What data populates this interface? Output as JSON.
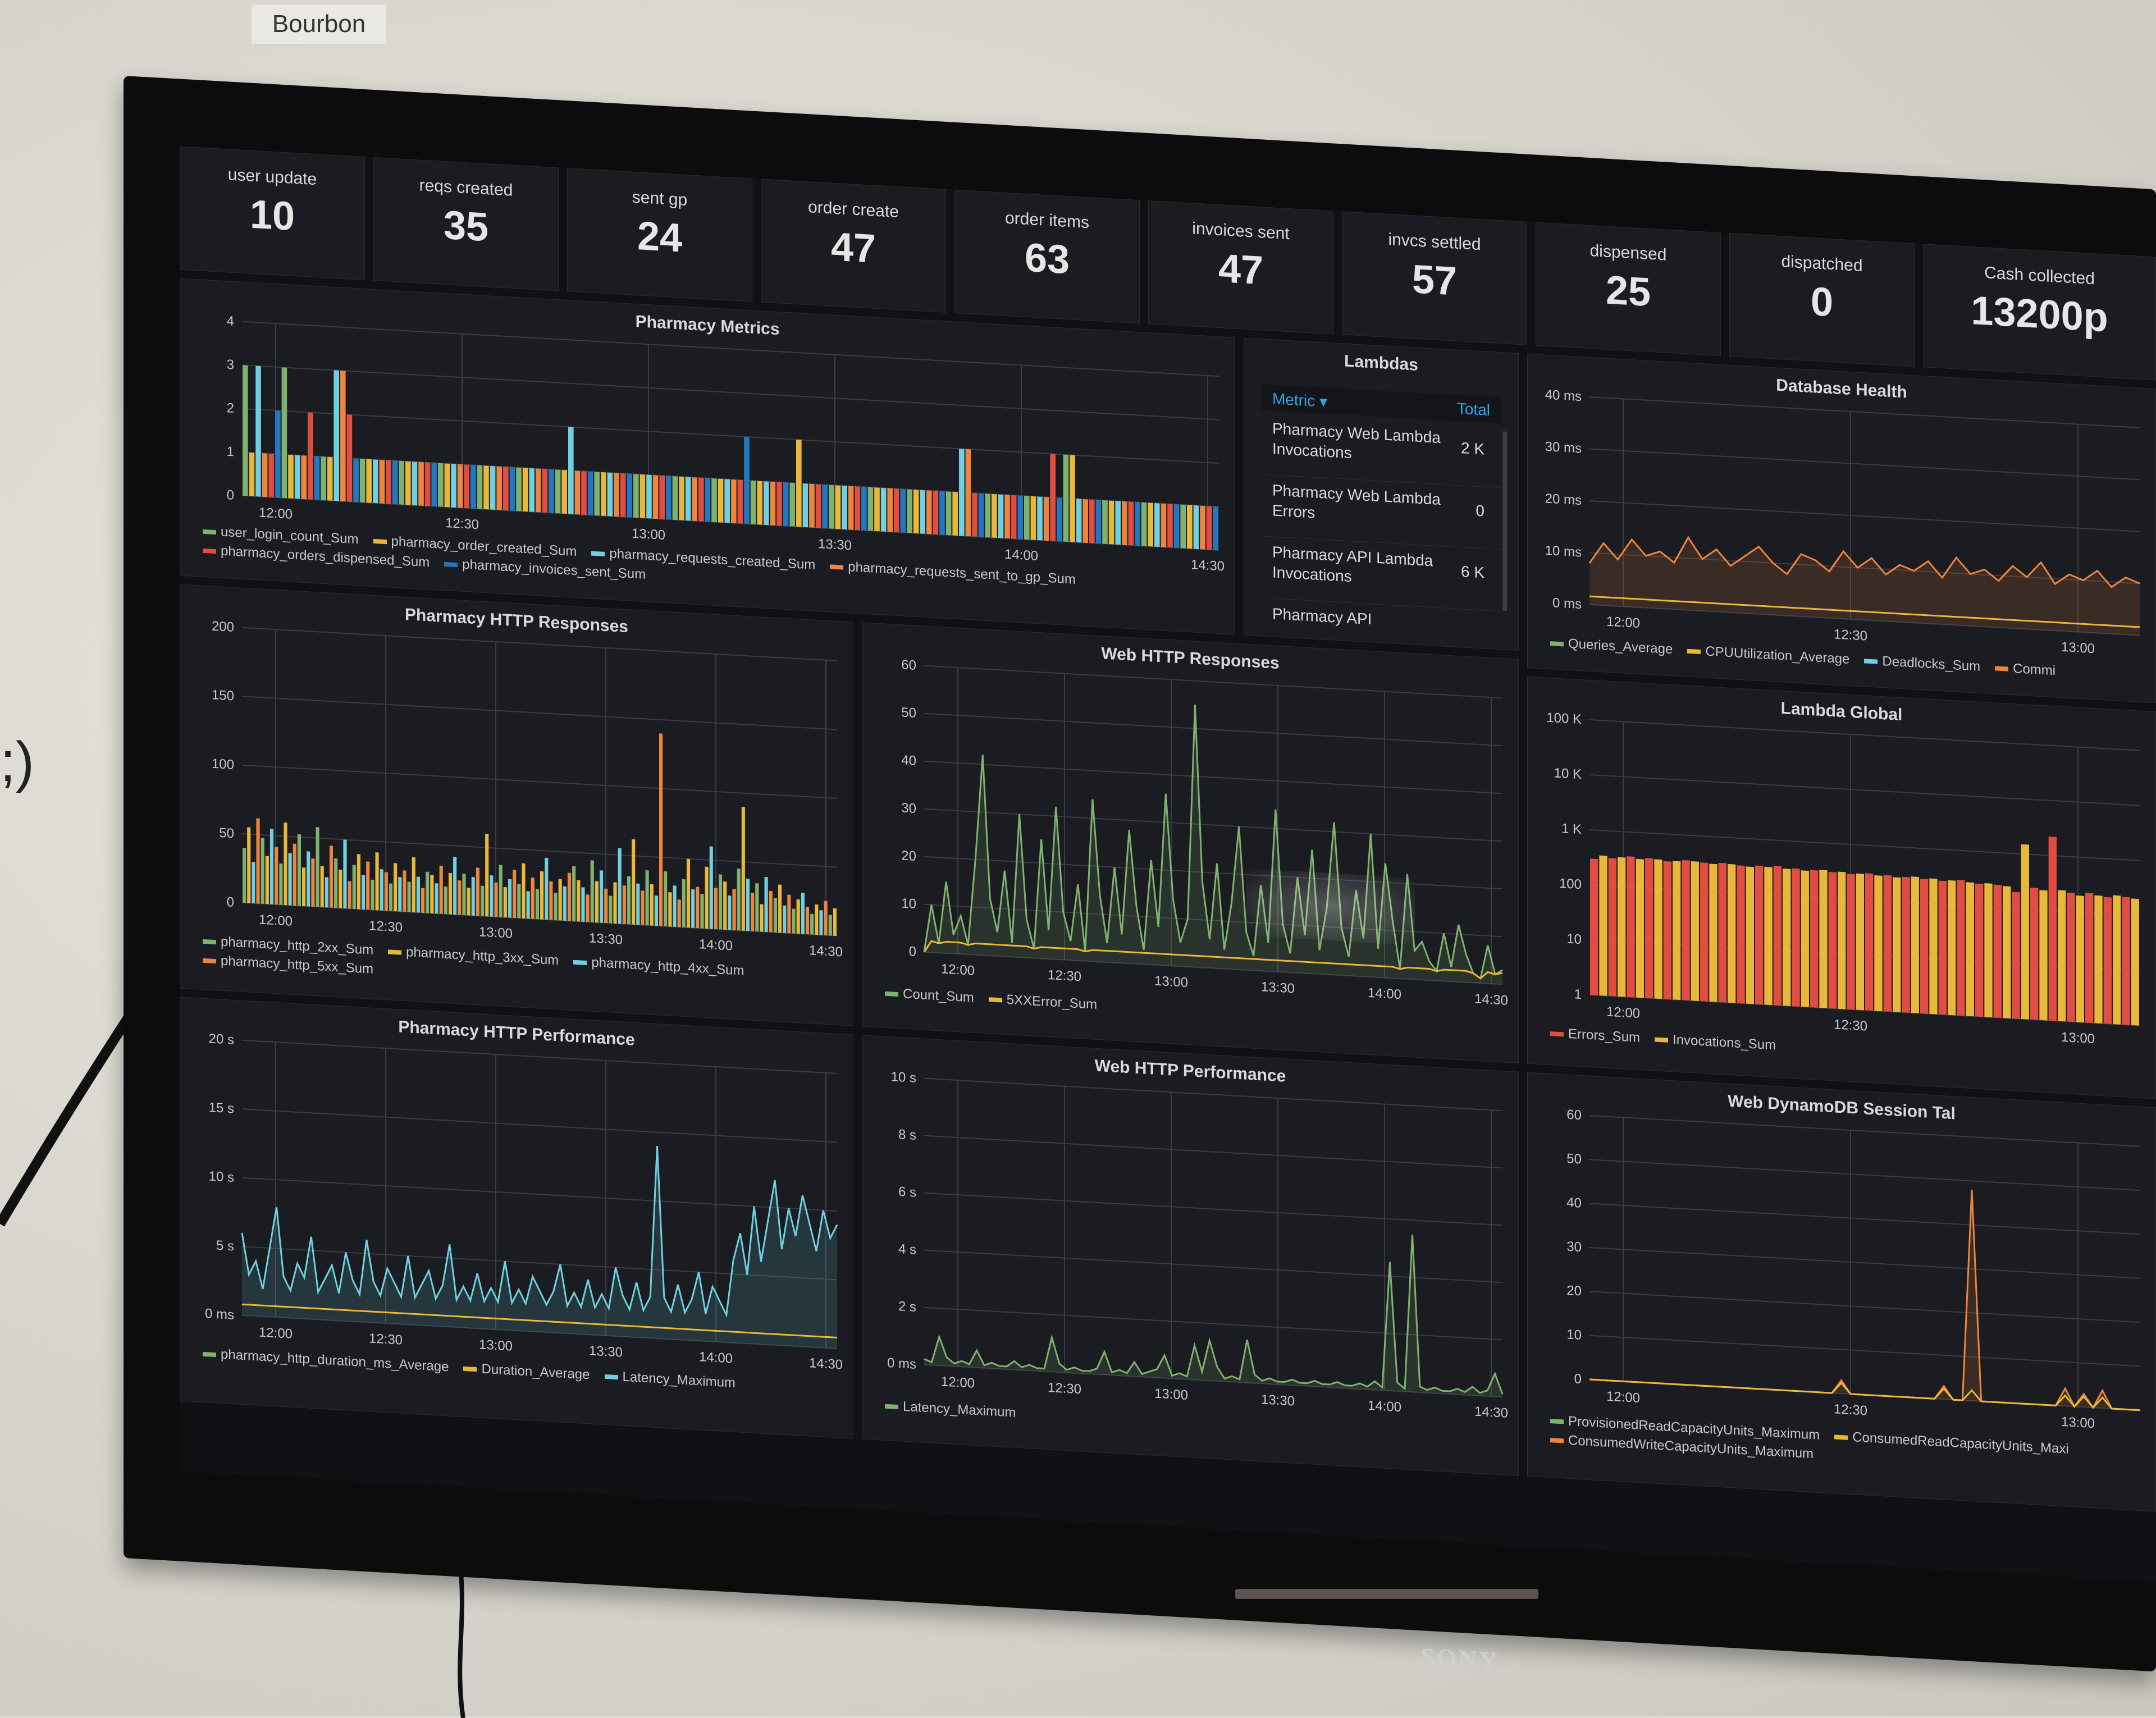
{
  "room_label": "Bourbon",
  "wall_text": ";)",
  "tv_brand": "SONY",
  "stats": [
    {
      "title": "user update",
      "value": "10"
    },
    {
      "title": "reqs created",
      "value": "35"
    },
    {
      "title": "sent gp",
      "value": "24"
    },
    {
      "title": "order create",
      "value": "47"
    },
    {
      "title": "order items",
      "value": "63"
    },
    {
      "title": "invoices sent",
      "value": "47"
    },
    {
      "title": "invcs settled",
      "value": "57"
    },
    {
      "title": "dispensed",
      "value": "25"
    },
    {
      "title": "dispatched",
      "value": "0"
    },
    {
      "title": "Cash collected",
      "value": "13200p"
    }
  ],
  "lambdas": {
    "title": "Lambdas",
    "col_metric": "Metric ▾",
    "col_total": "Total",
    "rows": [
      {
        "name": "Pharmacy Web Lambda Invocations",
        "total": "2 K"
      },
      {
        "name": "Pharmacy Web Lambda Errors",
        "total": "0"
      },
      {
        "name": "Pharmacy API Lambda Invocations",
        "total": "6 K"
      },
      {
        "name": "Pharmacy API",
        "total": ""
      }
    ]
  },
  "colors": {
    "green": "#7eb26d",
    "yellow": "#eab839",
    "cyan": "#6ed0e0",
    "orange": "#ef843c",
    "red": "#e24d42",
    "blue": "#1f78c1",
    "teal": "#5fd3a8"
  },
  "chart_data": [
    {
      "id": "pharmacy-metrics",
      "type": "bar",
      "title": "Pharmacy Metrics",
      "y_ticks": [
        "0",
        "1",
        "2",
        "3",
        "4"
      ],
      "x_ticks": [
        "12:00",
        "12:30",
        "13:00",
        "13:30",
        "14:00",
        "14:30"
      ],
      "ylim": [
        0,
        4
      ],
      "series": [
        {
          "name": "user_login_count_Sum",
          "color": "#7eb26d"
        },
        {
          "name": "pharmacy_order_created_Sum",
          "color": "#eab839"
        },
        {
          "name": "pharmacy_requests_created_Sum",
          "color": "#6ed0e0"
        },
        {
          "name": "pharmacy_requests_sent_to_gp_Sum",
          "color": "#ef843c"
        },
        {
          "name": "pharmacy_orders_dispensed_Sum",
          "color": "#e24d42"
        },
        {
          "name": "pharmacy_invoices_sent_Sum",
          "color": "#1f78c1"
        }
      ],
      "values": [
        3,
        1,
        3,
        1,
        1,
        2,
        3,
        1,
        1,
        1,
        2,
        1,
        1,
        1,
        3,
        3,
        2,
        1,
        1,
        1,
        1,
        1,
        1,
        1,
        1,
        1,
        1,
        1,
        1,
        1,
        1,
        1,
        1,
        1,
        1,
        1,
        1,
        1,
        1,
        1,
        1,
        1,
        1,
        1,
        1,
        1,
        1,
        1,
        1,
        1,
        2,
        1,
        1,
        1,
        1,
        1,
        1,
        1,
        1,
        1,
        1,
        1,
        1,
        1,
        1,
        1,
        1,
        1,
        1,
        1,
        1,
        1,
        1,
        1,
        1,
        1,
        1,
        2,
        1,
        1,
        1,
        1,
        1,
        1,
        1,
        2,
        1,
        1,
        1,
        1,
        1,
        1,
        1,
        1,
        1,
        1,
        1,
        1,
        1,
        1,
        1,
        1,
        1,
        1,
        1,
        1,
        1,
        1,
        1,
        1,
        2,
        2,
        1,
        1,
        1,
        1,
        1,
        1,
        1,
        1,
        1,
        1,
        1,
        1,
        2,
        1,
        2,
        2,
        1,
        1,
        1,
        1,
        1,
        1,
        1,
        1,
        1,
        1,
        1,
        1,
        1,
        1,
        1,
        1,
        1,
        1,
        1,
        1,
        1,
        1
      ]
    },
    {
      "id": "pharmacy-http-responses",
      "type": "bar",
      "title": "Pharmacy HTTP Responses",
      "y_ticks": [
        "0",
        "50",
        "100",
        "150",
        "200"
      ],
      "x_ticks": [
        "12:00",
        "12:30",
        "13:00",
        "13:30",
        "14:00",
        "14:30"
      ],
      "ylim": [
        0,
        200
      ],
      "series": [
        {
          "name": "pharmacy_http_2xx_Sum",
          "color": "#7eb26d"
        },
        {
          "name": "pharmacy_http_3xx_Sum",
          "color": "#eab839"
        },
        {
          "name": "pharmacy_http_4xx_Sum",
          "color": "#6ed0e0"
        },
        {
          "name": "pharmacy_http_5xx_Sum",
          "color": "#ef843c"
        }
      ],
      "values": [
        40,
        55,
        30,
        62,
        48,
        35,
        55,
        42,
        30,
        60,
        38,
        45,
        52,
        28,
        40,
        35,
        58,
        30,
        22,
        45,
        36,
        28,
        50,
        20,
        32,
        40,
        25,
        35,
        22,
        42,
        30,
        28,
        20,
        35,
        25,
        30,
        22,
        40,
        26,
        18,
        30,
        28,
        22,
        35,
        20,
        30,
        42,
        25,
        30,
        20,
        28,
        35,
        22,
        60,
        30,
        25,
        38,
        22,
        28,
        35,
        25,
        40,
        20,
        30,
        22,
        35,
        45,
        28,
        20,
        30,
        25,
        35,
        40,
        30,
        25,
        20,
        45,
        30,
        38,
        25,
        20,
        30,
        55,
        28,
        35,
        62,
        30,
        25,
        40,
        30,
        22,
        140,
        40,
        25,
        30,
        20,
        35,
        50,
        28,
        30,
        25,
        45,
        60,
        30,
        40,
        35,
        25,
        30,
        45,
        90,
        38,
        28,
        35,
        20,
        40,
        30,
        25,
        35,
        20,
        28,
        18,
        25,
        30,
        20,
        15,
        22,
        18,
        25,
        15,
        20
      ]
    },
    {
      "id": "web-http-responses",
      "type": "line",
      "title": "Web HTTP Responses",
      "y_ticks": [
        "0",
        "10",
        "20",
        "30",
        "40",
        "50",
        "60"
      ],
      "x_ticks": [
        "12:00",
        "12:30",
        "13:00",
        "13:30",
        "14:00",
        "14:30"
      ],
      "ylim": [
        0,
        60
      ],
      "series": [
        {
          "name": "Count_Sum",
          "color": "#7eb26d"
        },
        {
          "name": "5XXError_Sum",
          "color": "#eab839"
        }
      ],
      "values": [
        0,
        10,
        2,
        15,
        4,
        8,
        2,
        20,
        42,
        12,
        5,
        18,
        3,
        30,
        8,
        2,
        25,
        6,
        32,
        10,
        4,
        16,
        2,
        34,
        14,
        4,
        20,
        6,
        28,
        12,
        3,
        22,
        8,
        36,
        14,
        5,
        10,
        55,
        18,
        6,
        22,
        4,
        14,
        30,
        8,
        3,
        18,
        6,
        34,
        10,
        4,
        20,
        8,
        26,
        5,
        14,
        32,
        10,
        4,
        18,
        8,
        30,
        6,
        24,
        12,
        2,
        22,
        6,
        8,
        4,
        2,
        10,
        3,
        12,
        6,
        2,
        1,
        8,
        2,
        3
      ]
    },
    {
      "id": "pharmacy-http-performance",
      "type": "line",
      "title": "Pharmacy HTTP Performance",
      "y_ticks": [
        "0 ms",
        "5 s",
        "10 s",
        "15 s",
        "20 s"
      ],
      "x_ticks": [
        "12:00",
        "12:30",
        "13:00",
        "13:30",
        "14:00",
        "14:30"
      ],
      "ylim": [
        0,
        20
      ],
      "series": [
        {
          "name": "pharmacy_http_duration_ms_Average",
          "color": "#7eb26d"
        },
        {
          "name": "Duration_Average",
          "color": "#eab839"
        },
        {
          "name": "Latency_Maximum",
          "color": "#6ed0e0"
        }
      ],
      "values": [
        6,
        3,
        4,
        2,
        5,
        8,
        3,
        2,
        4,
        3,
        6,
        2,
        3,
        4,
        2,
        5,
        3,
        2,
        6,
        3,
        2,
        4,
        3,
        2,
        5,
        2,
        3,
        4,
        2,
        3,
        6,
        2,
        3,
        2,
        4,
        2,
        3,
        2,
        5,
        2,
        3,
        2,
        4,
        3,
        2,
        3,
        5,
        2,
        3,
        2,
        4,
        2,
        3,
        2,
        5,
        3,
        2,
        4,
        2,
        3,
        14,
        3,
        2,
        4,
        2,
        3,
        5,
        2,
        4,
        3,
        2,
        6,
        8,
        5,
        10,
        6,
        9,
        12,
        7,
        10,
        8,
        11,
        9,
        7,
        10,
        8,
        9
      ]
    },
    {
      "id": "web-http-performance",
      "type": "line",
      "title": "Web HTTP Performance",
      "y_ticks": [
        "0 ms",
        "2 s",
        "4 s",
        "6 s",
        "8 s",
        "10 s"
      ],
      "x_ticks": [
        "12:00",
        "12:30",
        "13:00",
        "13:30",
        "14:00",
        "14:30"
      ],
      "ylim": [
        0,
        10
      ],
      "series": [
        {
          "name": "Latency_Maximum",
          "color": "#7eb26d"
        }
      ],
      "values": [
        0.2,
        0.1,
        1.0,
        0.3,
        0.1,
        0.2,
        0.1,
        0.6,
        0.1,
        0.2,
        0.1,
        0.1,
        0.3,
        0.1,
        0.2,
        0.1,
        0.1,
        1.2,
        0.3,
        0.1,
        0.2,
        0.1,
        0.1,
        0.2,
        0.8,
        0.1,
        0.2,
        0.1,
        0.5,
        0.1,
        0.2,
        0.3,
        0.8,
        0.1,
        0.2,
        0.1,
        1.2,
        0.3,
        1.4,
        0.5,
        0.1,
        0.2,
        0.1,
        1.5,
        0.3,
        0.1,
        0.2,
        0.1,
        0.1,
        0.2,
        0.1,
        0.1,
        0.2,
        0.1,
        0.1,
        0.2,
        0.1,
        0.1,
        0.2,
        0.1,
        0.3,
        0.1,
        4.5,
        0.3,
        0.1,
        5.5,
        0.2,
        0.1,
        0.2,
        0.1,
        0.1,
        0.2,
        0.1,
        0.3,
        0.1,
        0.2,
        0.8,
        0.1
      ]
    },
    {
      "id": "database-health",
      "type": "line",
      "title": "Database Health",
      "y_ticks": [
        "0 ms",
        "10 ms",
        "20 ms",
        "30 ms",
        "40 ms"
      ],
      "x_ticks": [
        "12:00",
        "12:30",
        "13:00"
      ],
      "ylim": [
        0,
        40
      ],
      "series": [
        {
          "name": "Queries_Average",
          "color": "#7eb26d"
        },
        {
          "name": "CPUUtilization_Average",
          "color": "#eab839"
        },
        {
          "name": "Deadlocks_Sum",
          "color": "#6ed0e0"
        },
        {
          "name": "Commi",
          "color": "#ef843c"
        }
      ],
      "values": [
        8,
        12,
        9,
        13,
        10,
        11,
        9,
        14,
        10,
        12,
        9,
        11,
        13,
        10,
        8,
        12,
        11,
        9,
        13,
        10,
        12,
        9,
        11,
        10,
        12,
        9,
        13,
        10,
        11,
        9,
        12,
        10,
        13,
        9,
        11,
        10,
        12,
        9,
        11,
        10
      ]
    },
    {
      "id": "lambda-global",
      "type": "bar",
      "title": "Lambda Global",
      "y_ticks": [
        "1",
        "10",
        "100",
        "1 K",
        "10 K",
        "100 K"
      ],
      "x_ticks": [
        "12:00",
        "12:30",
        "13:00"
      ],
      "ylim": [
        1,
        100000
      ],
      "log_scale": true,
      "series": [
        {
          "name": "Errors_Sum",
          "color": "#e24d42"
        },
        {
          "name": "Invocations_Sum",
          "color": "#eab839"
        }
      ],
      "values": [
        300,
        350,
        320,
        340,
        360,
        330,
        350,
        340,
        320,
        330,
        350,
        340,
        330,
        320,
        340,
        330,
        320,
        310,
        330,
        320,
        340,
        310,
        320,
        300,
        310,
        320,
        300,
        310,
        290,
        300,
        310,
        290,
        300,
        280,
        290,
        300,
        280,
        290,
        270,
        280,
        290,
        270,
        260,
        270,
        260,
        250,
        200,
        1500,
        250,
        230,
        2200,
        240,
        220,
        200,
        230,
        210,
        200,
        220,
        210,
        200
      ]
    },
    {
      "id": "web-dynamodb-session",
      "type": "line",
      "title": "Web DynamoDB Session Tal",
      "y_ticks": [
        "0",
        "10",
        "20",
        "30",
        "40",
        "50",
        "60"
      ],
      "x_ticks": [
        "12:00",
        "12:30",
        "13:00"
      ],
      "ylim": [
        0,
        60
      ],
      "series": [
        {
          "name": "ProvisionedReadCapacityUnits_Maximum",
          "color": "#7eb26d"
        },
        {
          "name": "ConsumedReadCapacityUnits_Maxi",
          "color": "#eab839"
        },
        {
          "name": "ConsumedWriteCapacityUnits_Maximum",
          "color": "#ef843c"
        }
      ],
      "values": [
        0,
        0,
        0,
        0,
        0,
        0,
        0,
        0,
        0,
        0,
        0,
        0,
        0,
        0,
        0,
        0,
        0,
        0,
        0,
        0,
        0,
        0,
        0,
        0,
        0,
        0,
        0,
        3,
        0,
        0,
        0,
        0,
        0,
        0,
        0,
        0,
        0,
        0,
        3,
        0,
        0,
        48,
        0,
        0,
        0,
        0,
        0,
        0,
        0,
        0,
        0,
        4,
        0,
        3,
        0,
        4,
        0,
        0,
        0,
        0
      ]
    }
  ]
}
